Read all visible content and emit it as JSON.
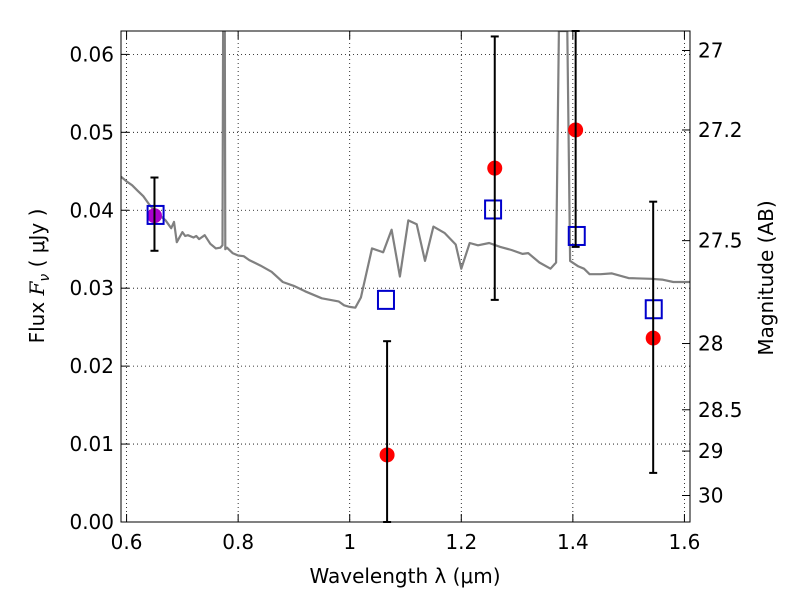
{
  "chart_data": {
    "type": "scatter",
    "xlabel": "Wavelength  λ (μm)",
    "ylabel": {
      "prefix": "Flux  ",
      "symbol": "F",
      "subscript": "ν",
      "suffix": "  (  μJy  )"
    },
    "y2label": "Magnitude (AB)",
    "xlim": [
      0.59,
      1.61
    ],
    "ylim": [
      0.0,
      0.063
    ],
    "grid": true,
    "x_ticks": [
      {
        "value": 0.6,
        "label": "0.6"
      },
      {
        "value": 0.8,
        "label": "0.8"
      },
      {
        "value": 1.0,
        "label": "1"
      },
      {
        "value": 1.2,
        "label": "1.2"
      },
      {
        "value": 1.4,
        "label": "1.4"
      },
      {
        "value": 1.6,
        "label": "1.6"
      }
    ],
    "y_ticks": [
      {
        "value": 0.0,
        "label": "0.00"
      },
      {
        "value": 0.01,
        "label": "0.01"
      },
      {
        "value": 0.02,
        "label": "0.02"
      },
      {
        "value": 0.03,
        "label": "0.03"
      },
      {
        "value": 0.04,
        "label": "0.04"
      },
      {
        "value": 0.05,
        "label": "0.05"
      },
      {
        "value": 0.06,
        "label": "0.06"
      }
    ],
    "y2_ticks": [
      {
        "flux": 0.0605,
        "label": "27"
      },
      {
        "flux": 0.0503,
        "label": "27.2"
      },
      {
        "flux": 0.0361,
        "label": "27.5"
      },
      {
        "flux": 0.0229,
        "label": "28"
      },
      {
        "flux": 0.0144,
        "label": "28.5"
      },
      {
        "flux": 0.0091,
        "label": "29"
      },
      {
        "flux": 0.0034,
        "label": "30"
      }
    ],
    "series": [
      {
        "kind": "line",
        "color": "#808080",
        "points": [
          [
            0.59,
            0.0443
          ],
          [
            0.6,
            0.0437
          ],
          [
            0.61,
            0.0432
          ],
          [
            0.62,
            0.0425
          ],
          [
            0.63,
            0.0418
          ],
          [
            0.64,
            0.0408
          ],
          [
            0.65,
            0.0399
          ],
          [
            0.66,
            0.0393
          ],
          [
            0.67,
            0.0387
          ],
          [
            0.675,
            0.0382
          ],
          [
            0.68,
            0.0377
          ],
          [
            0.685,
            0.0385
          ],
          [
            0.69,
            0.0359
          ],
          [
            0.7,
            0.0372
          ],
          [
            0.705,
            0.0367
          ],
          [
            0.71,
            0.0368
          ],
          [
            0.72,
            0.0365
          ],
          [
            0.725,
            0.0367
          ],
          [
            0.73,
            0.0363
          ],
          [
            0.74,
            0.0368
          ],
          [
            0.75,
            0.0357
          ],
          [
            0.76,
            0.0351
          ],
          [
            0.768,
            0.0352
          ],
          [
            0.772,
            0.0355
          ],
          [
            0.773,
            0.063
          ],
          [
            0.776,
            0.063
          ],
          [
            0.777,
            0.035
          ],
          [
            0.78,
            0.0352
          ],
          [
            0.79,
            0.0345
          ],
          [
            0.8,
            0.0342
          ],
          [
            0.81,
            0.0341
          ],
          [
            0.82,
            0.0336
          ],
          [
            0.84,
            0.0329
          ],
          [
            0.86,
            0.0321
          ],
          [
            0.88,
            0.0308
          ],
          [
            0.9,
            0.0303
          ],
          [
            0.92,
            0.0296
          ],
          [
            0.95,
            0.0287
          ],
          [
            0.98,
            0.0283
          ],
          [
            0.99,
            0.0278
          ],
          [
            1.0,
            0.0276
          ],
          [
            1.01,
            0.0275
          ],
          [
            1.02,
            0.0288
          ],
          [
            1.04,
            0.0351
          ],
          [
            1.06,
            0.0346
          ],
          [
            1.075,
            0.0375
          ],
          [
            1.09,
            0.0315
          ],
          [
            1.105,
            0.0387
          ],
          [
            1.12,
            0.0382
          ],
          [
            1.135,
            0.0335
          ],
          [
            1.15,
            0.0379
          ],
          [
            1.17,
            0.0371
          ],
          [
            1.19,
            0.0356
          ],
          [
            1.2,
            0.0325
          ],
          [
            1.215,
            0.0358
          ],
          [
            1.23,
            0.0355
          ],
          [
            1.25,
            0.0358
          ],
          [
            1.27,
            0.0353
          ],
          [
            1.29,
            0.0349
          ],
          [
            1.31,
            0.0344
          ],
          [
            1.32,
            0.0345
          ],
          [
            1.34,
            0.0333
          ],
          [
            1.36,
            0.0325
          ],
          [
            1.37,
            0.0333
          ],
          [
            1.375,
            0.063
          ],
          [
            1.39,
            0.063
          ],
          [
            1.395,
            0.0335
          ],
          [
            1.41,
            0.0328
          ],
          [
            1.42,
            0.0325
          ],
          [
            1.43,
            0.0318
          ],
          [
            1.45,
            0.0318
          ],
          [
            1.47,
            0.0319
          ],
          [
            1.5,
            0.0313
          ],
          [
            1.54,
            0.0312
          ],
          [
            1.56,
            0.0311
          ],
          [
            1.58,
            0.0308
          ],
          [
            1.61,
            0.0308
          ]
        ]
      },
      {
        "kind": "scatter",
        "marker": "circle",
        "color": "#ff0000",
        "points": [
          {
            "x": 0.65,
            "y": 0.0393,
            "yerr": [
              0.0348,
              0.0442
            ],
            "color": "#aa00cc"
          },
          {
            "x": 1.067,
            "y": 0.0086,
            "yerr": [
              0.0,
              0.0232
            ]
          },
          {
            "x": 1.26,
            "y": 0.0454,
            "yerr": [
              0.0285,
              0.0623
            ]
          },
          {
            "x": 1.405,
            "y": 0.0503,
            "yerr": [
              0.0353,
              0.063
            ]
          },
          {
            "x": 1.544,
            "y": 0.0236,
            "yerr": [
              0.0063,
              0.0411
            ]
          }
        ]
      },
      {
        "kind": "scatter",
        "marker": "square-open",
        "color": "#0000cc",
        "points": [
          {
            "x": 0.652,
            "y": 0.0394
          },
          {
            "x": 1.065,
            "y": 0.0285
          },
          {
            "x": 1.257,
            "y": 0.0401
          },
          {
            "x": 1.407,
            "y": 0.0367
          },
          {
            "x": 1.545,
            "y": 0.0273
          }
        ]
      }
    ]
  }
}
